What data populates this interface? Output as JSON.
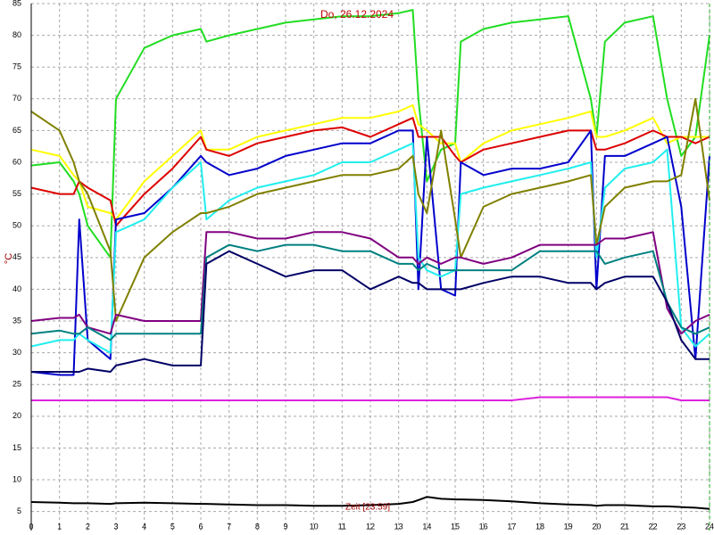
{
  "chart_data": {
    "type": "line",
    "title": "Do, 26.12.2024",
    "x_label": "Zeit [23:59]",
    "y_label": "°C",
    "x": [
      0,
      1,
      1.5,
      1.7,
      2,
      2.8,
      3,
      4,
      5,
      6,
      6.2,
      7,
      8,
      9,
      10,
      11,
      12,
      13,
      13.5,
      13.7,
      14,
      14.5,
      15,
      15.2,
      16,
      17,
      18,
      19,
      19.8,
      20,
      20.3,
      21,
      22,
      22.5,
      23,
      23.5,
      24
    ],
    "xlim": [
      0,
      24
    ],
    "ylim": [
      2,
      85
    ],
    "xticks": [
      0,
      1,
      2,
      3,
      4,
      5,
      6,
      7,
      8,
      9,
      10,
      11,
      12,
      13,
      14,
      15,
      16,
      17,
      18,
      19,
      20,
      21,
      22,
      23,
      24
    ],
    "yticks": [
      5,
      10,
      15,
      20,
      25,
      30,
      35,
      40,
      45,
      50,
      55,
      60,
      65,
      70,
      75,
      80,
      85
    ],
    "grid": true,
    "series": [
      {
        "color": "#22dd22",
        "values": [
          59.5,
          60,
          57,
          55,
          50,
          45,
          70,
          78,
          80,
          81,
          79,
          80,
          81,
          82,
          82.5,
          83,
          83,
          83.5,
          84,
          70,
          57,
          62,
          63,
          79,
          81,
          82,
          82.5,
          83,
          70,
          64,
          79,
          82,
          83,
          70,
          61,
          64,
          80
        ]
      },
      {
        "color": "#ffff00",
        "values": [
          62,
          61,
          58,
          57,
          53,
          52,
          51,
          57,
          61,
          65,
          62,
          62,
          64,
          65,
          66,
          67,
          67,
          68,
          69,
          66,
          65,
          63,
          63,
          60,
          63,
          65,
          66,
          67,
          68,
          64,
          64,
          65,
          67,
          63,
          64,
          64,
          64
        ]
      },
      {
        "color": "#dd0000",
        "values": [
          56,
          55,
          55,
          57,
          56,
          54,
          50,
          55,
          59,
          64,
          62,
          61,
          63,
          64,
          65,
          65.5,
          64,
          66,
          67,
          64,
          64,
          64,
          61,
          60,
          62,
          63,
          64,
          65,
          65,
          62,
          62,
          63,
          65,
          64,
          64,
          63,
          64
        ]
      },
      {
        "color": "#0000cc",
        "values": [
          27,
          26.5,
          26.5,
          51,
          32,
          29,
          51,
          52,
          56,
          61,
          60,
          58,
          59,
          61,
          62,
          63,
          63,
          65,
          65,
          40,
          64,
          40,
          39,
          60,
          58,
          59,
          59,
          60,
          65,
          40,
          61,
          61,
          63,
          64,
          53,
          29,
          61
        ]
      },
      {
        "color": "#22eeee",
        "values": [
          31,
          32,
          32,
          33,
          32,
          30,
          49,
          51,
          56,
          60,
          51,
          54,
          56,
          57,
          58,
          60,
          60,
          62,
          63,
          45,
          43,
          42,
          43,
          55,
          56,
          57,
          58,
          59,
          60,
          45,
          56,
          59,
          60,
          62,
          34,
          31,
          33
        ]
      },
      {
        "color": "#808000",
        "values": [
          68,
          65,
          60,
          57,
          55,
          46,
          35,
          45,
          49,
          52,
          52,
          53,
          55,
          56,
          57,
          58,
          58,
          59,
          61,
          55,
          52,
          65,
          51,
          45,
          53,
          55,
          56,
          57,
          58,
          47,
          53,
          56,
          57,
          57,
          58,
          70,
          54
        ]
      },
      {
        "color": "#800080",
        "values": [
          35,
          35.5,
          35.5,
          36,
          34,
          33,
          36,
          35,
          35,
          35,
          49,
          49,
          48,
          48,
          49,
          49,
          48,
          45,
          45,
          44,
          45,
          44,
          45,
          45,
          44,
          45,
          47,
          47,
          47,
          47,
          48,
          48,
          49,
          37,
          33,
          35,
          36
        ]
      },
      {
        "color": "#008080",
        "values": [
          33,
          33.5,
          33,
          33,
          34,
          32,
          33,
          33,
          33,
          33,
          45,
          47,
          46,
          47,
          47,
          46,
          46,
          44,
          44,
          43,
          44,
          43,
          43,
          43,
          43,
          43,
          46,
          46,
          46,
          46,
          44,
          45,
          46,
          38,
          34,
          33,
          34
        ]
      },
      {
        "color": "#000066",
        "values": [
          27,
          27,
          27,
          27,
          27.5,
          27,
          28,
          29,
          28,
          28,
          44,
          46,
          44,
          42,
          43,
          43,
          40,
          42,
          41,
          41,
          40,
          40,
          40,
          40,
          41,
          42,
          42,
          41,
          41,
          40,
          41,
          42,
          42,
          38,
          32,
          29,
          29
        ]
      },
      {
        "color": "#dd22dd",
        "values": [
          22.5,
          22.5,
          22.5,
          22.5,
          22.5,
          22.5,
          22.5,
          22.5,
          22.5,
          22.5,
          22.5,
          22.5,
          22.5,
          22.5,
          22.5,
          22.5,
          22.5,
          22.5,
          22.5,
          22.5,
          22.5,
          22.5,
          22.5,
          22.5,
          22.5,
          22.5,
          23,
          23,
          23,
          23,
          23,
          23,
          23,
          23,
          22.5,
          22.5,
          22.5
        ]
      },
      {
        "color": "#000000",
        "values": [
          6.5,
          6.4,
          6.3,
          6.3,
          6.3,
          6.2,
          6.3,
          6.4,
          6.3,
          6.2,
          6.2,
          6.1,
          6,
          6,
          5.9,
          5.9,
          6,
          6.2,
          6.5,
          6.8,
          7.3,
          7,
          6.9,
          6.9,
          6.8,
          6.6,
          6.3,
          6.1,
          6,
          5.9,
          6,
          6,
          5.8,
          5.8,
          5.7,
          5.6,
          5.4
        ]
      }
    ]
  }
}
